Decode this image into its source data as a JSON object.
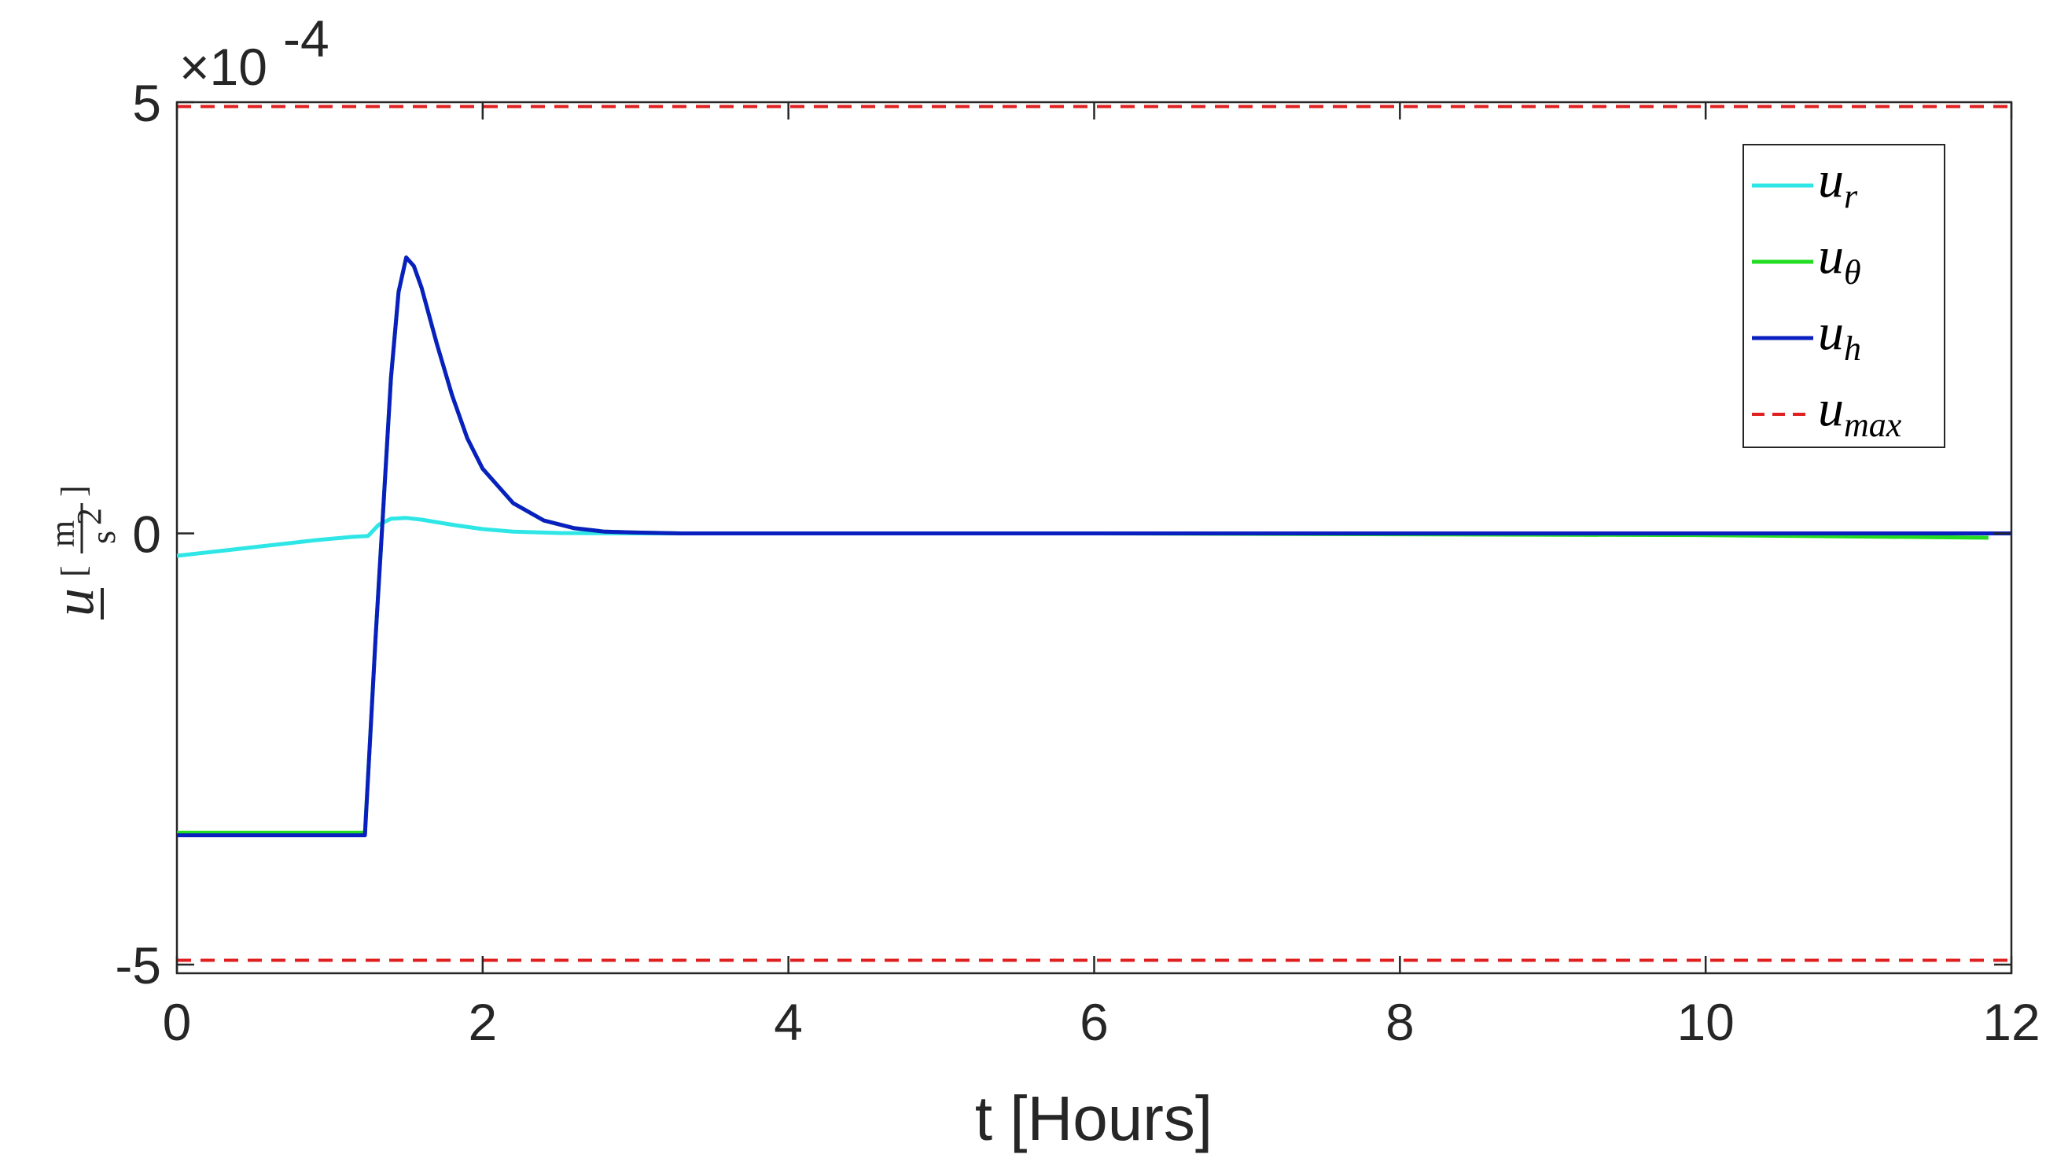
{
  "chart_data": {
    "type": "line",
    "xlabel": "t [Hours]",
    "ylabel": {
      "symbol": "u",
      "unit_num": "m",
      "unit_den": "s",
      "unit_den_exp": "2"
    },
    "y_multiplier_label": {
      "prefix": "×10",
      "exponent": "-4"
    },
    "xlim": [
      0,
      12
    ],
    "ylim": [
      -5.1,
      5
    ],
    "x_ticks": [
      0,
      2,
      4,
      6,
      8,
      10,
      12
    ],
    "x_tick_labels": [
      "0",
      "2",
      "4",
      "6",
      "8",
      "10",
      "12"
    ],
    "y_ticks": [
      -5,
      0,
      5
    ],
    "y_tick_labels": [
      "-5",
      "0",
      "5"
    ],
    "y_unit_scale": "1e-4",
    "grid": false,
    "legend_position": "top-right",
    "series": [
      {
        "name": "u_r",
        "legend": {
          "base": "u",
          "sub": "r"
        },
        "color": "#2ee6e6",
        "style": "solid",
        "x": [
          0,
          0.3,
          0.6,
          0.9,
          1.15,
          1.25,
          1.32,
          1.4,
          1.5,
          1.6,
          1.8,
          2.0,
          2.2,
          2.5,
          3.0,
          4,
          6,
          8,
          10,
          11.85
        ],
        "y": [
          -0.26,
          -0.2,
          -0.14,
          -0.08,
          -0.04,
          -0.03,
          0.1,
          0.17,
          0.18,
          0.16,
          0.1,
          0.05,
          0.02,
          0.005,
          0,
          0,
          0,
          0,
          0,
          0
        ]
      },
      {
        "name": "u_theta",
        "legend": {
          "base": "u",
          "sub": "θ"
        },
        "color": "#22dd22",
        "style": "solid",
        "x": [
          0,
          1.23,
          1.26,
          1.3,
          1.35,
          1.4,
          1.45,
          1.5,
          1.55,
          1.6,
          1.7,
          1.8,
          1.9,
          2.0,
          2.2,
          2.4,
          2.6,
          2.8,
          3.0,
          3.3,
          4,
          6,
          8,
          10,
          11.85
        ],
        "y": [
          -3.47,
          -3.47,
          -2.5,
          -1.2,
          0.3,
          1.8,
          2.8,
          3.2,
          3.1,
          2.85,
          2.2,
          1.6,
          1.1,
          0.75,
          0.35,
          0.15,
          0.06,
          0.02,
          0.01,
          0,
          0,
          0,
          -0.01,
          -0.02,
          -0.05
        ]
      },
      {
        "name": "u_h",
        "legend": {
          "base": "u",
          "sub": "h"
        },
        "color": "#0a1fbf",
        "style": "solid",
        "x": [
          0,
          1.23,
          1.26,
          1.3,
          1.35,
          1.4,
          1.45,
          1.5,
          1.55,
          1.6,
          1.7,
          1.8,
          1.9,
          2.0,
          2.2,
          2.4,
          2.6,
          2.8,
          3.0,
          3.3,
          4,
          6,
          8,
          10,
          12
        ],
        "y": [
          -3.5,
          -3.5,
          -2.5,
          -1.2,
          0.3,
          1.8,
          2.8,
          3.2,
          3.1,
          2.85,
          2.2,
          1.6,
          1.1,
          0.75,
          0.35,
          0.15,
          0.06,
          0.02,
          0.01,
          0,
          0,
          0,
          0,
          0,
          0
        ]
      },
      {
        "name": "u_max",
        "legend": {
          "base": "u",
          "sub": "max"
        },
        "color": "#e02020",
        "style": "dashed",
        "x": [
          0,
          12
        ],
        "y": [
          4.95,
          4.95
        ],
        "mirror_y": [
          -4.95,
          -4.95
        ]
      }
    ]
  }
}
